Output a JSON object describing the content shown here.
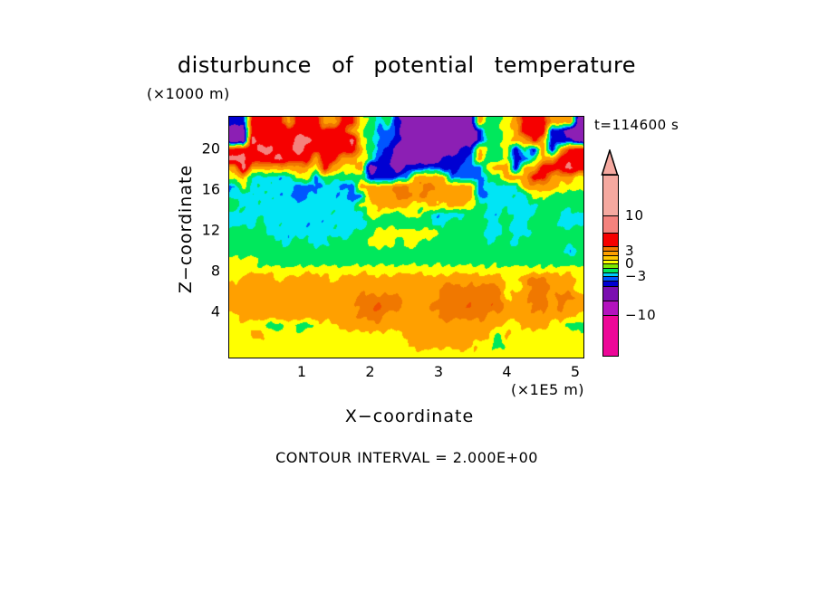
{
  "title": "disturbunce of potential temperature",
  "z_units": "(×1000 m)",
  "timestamp": "t=114600 s",
  "y_axis": {
    "label": "Z−coordinate",
    "ticks": [
      20,
      16,
      12,
      8,
      4
    ]
  },
  "x_axis": {
    "label": "X−coordinate",
    "ticks": [
      1,
      2,
      3,
      4,
      5
    ],
    "units": "(×1E5 m)"
  },
  "footer": {
    "contour_interval": "CONTOUR INTERVAL = 2.000E+00"
  },
  "colorbar": {
    "segments": [
      {
        "color": "#F5A9A0",
        "h": 45
      },
      {
        "color": "#F4827D",
        "h": 19
      },
      {
        "color": "#F60000",
        "h": 15
      },
      {
        "color": "#F07800",
        "h": 5
      },
      {
        "color": "#FFA000",
        "h": 5
      },
      {
        "color": "#FFC800",
        "h": 5
      },
      {
        "color": "#FFFF00",
        "h": 4
      },
      {
        "color": "#7DE800",
        "h": 5
      },
      {
        "color": "#00E85C",
        "h": 5
      },
      {
        "color": "#00CCF5",
        "h": 4
      },
      {
        "color": "#0055FF",
        "h": 5
      },
      {
        "color": "#0000D2",
        "h": 6
      },
      {
        "color": "#7A0FB0",
        "h": 16
      },
      {
        "color": "#B312BE",
        "h": 16
      },
      {
        "color": "#ED0798",
        "h": 44
      }
    ],
    "labels": [
      {
        "text": "10",
        "after_segment": 0
      },
      {
        "text": "3",
        "after_segment": 3
      },
      {
        "text": "0",
        "after_segment": 6
      },
      {
        "text": "−3",
        "after_segment": 9
      },
      {
        "text": "−10",
        "after_segment": 13
      }
    ]
  },
  "chart_data": {
    "type": "heatmap",
    "title": "disturbunce of potential temperature",
    "xlabel": "X−coordinate (×1E5 m)",
    "ylabel": "Z−coordinate (×1000 m)",
    "x_range": [
      0,
      5.2
    ],
    "z_range": [
      0,
      23
    ],
    "contour_interval": 2.0,
    "time_seconds": 114600,
    "legend_position": "right",
    "levels": {
      "p": 11.5,
      "s": 9,
      "R": 6.9,
      "E": 5.4,
      "D": 4.4,
      "O": 3,
      "Y": 1.5,
      "G": 0,
      "C": -1.3,
      "B": -2.3,
      "N": -3.6,
      "V": -6.5,
      "M": -9
    },
    "bands": [
      {
        "min": 10.5,
        "color": "#F5A9A0"
      },
      {
        "min": 8.0,
        "color": "#F4827D"
      },
      {
        "min": 5.8,
        "color": "#F60000"
      },
      {
        "min": 5.05,
        "color": "#F05000"
      },
      {
        "min": 3.8,
        "color": "#F07800"
      },
      {
        "min": 2.2,
        "color": "#FFA000"
      },
      {
        "min": 0.8,
        "color": "#FFFF00"
      },
      {
        "min": -0.8,
        "color": "#00E85C"
      },
      {
        "min": -1.8,
        "color": "#00E5F5"
      },
      {
        "min": -2.8,
        "color": "#0055FF"
      },
      {
        "min": -4.5,
        "color": "#0000D2"
      },
      {
        "min": -8.0,
        "color": "#8C1FB4"
      },
      {
        "min": -99,
        "color": "#C800C8"
      }
    ],
    "grid_rows": [
      "NNRRRRORRROORRYGCGNVVVVVVVVOGGYORRROOOV",
      "VVRRRRRRRRRRROYGBBNVVVVVVVVNGGYORRRNNVV",
      "VVsRRRRssRRRRsYGBBNVVVVVVVVNGGYOORONNNV",
      "RRRssRRsRRRRRROGBNVVVVVVVNNOGGYNGNONORR",
      "ssRRRsRRRORROOYGNNVVVVVNNNBOGGYNBGOORRR",
      "OsOOOOOOOYROYYOVNNVNNBBNNBBBYOONOORRRsR",
      "YOCCCCCYYBGGGGGNNNBBOOOOBBBBGGOOORROOOY",
      "BYCCCCCBBBCCBBOOOODDODDOOOOBCCCCOOOOYYY",
      "CCCCCCCBBCCCCBBOOODDODOOOOOBCCCCCYYGGGG",
      "GCCCCCCCCCCCCCYYOOOOYYOYOOYGCCCCCCGGGGG",
      "CCCCCCCCCCCCCCCYYGGYYGCCCCGGCCGCCCGGCCC",
      "CCCGCCCCCCCCCCCGGGGGGGCCGGGGCCGCCGGGCCC",
      "GGGGCCCCCCCCCCGGYYYYYYYGGGGGCCGCCGGGGGG",
      "GGGGGCCGGCCGGGGYYYGYYGGGGGGGCGGCGGGGGGG",
      "GGGGGGGGGGGGGGGGGGGGGGGGGGGGGGGGGGGGGBG",
      "YYYGGGGGGGGGGGGGGGGGGGGGGGGGGGGGGGGGGGG",
      "YYYYYYYYYYYYYYYYYYYYYYYYYYYYYYYYYYYYYYY",
      "YOOOOYOOOOOYOOOOOOOOOOOOOOOOOOYYODDOOOY",
      "OOOOOOOOOOOOOOOOOOOOOOODDDDDDDYYODDOOOY",
      "OOOOOOOOOOOOOODDDDDOOOODDDDDDDYOODDODDO",
      "OOOOOOOOOOOOOODDEDDOOODDDDEDDEOOODDODOO",
      "YOOOOOOOOOOOOODDDOOOOOODDDDDOOOOOOOOOOY",
      "YYYYGGYGGYYYOOOOOOOOOOOOOOOOOOYYOOOYYGG",
      "YYOOYYYYYYYYYYYYYYYOOOOOOOOOOGOYYYYYYYY",
      "YYYYYYYYYYYYYYYYYYYYOOOOOOOYYGYYYYYYYYY",
      "YYYYYYYYYYYYYYYYYYYYYYYYYYYYYYYYYYYYYYY"
    ]
  }
}
